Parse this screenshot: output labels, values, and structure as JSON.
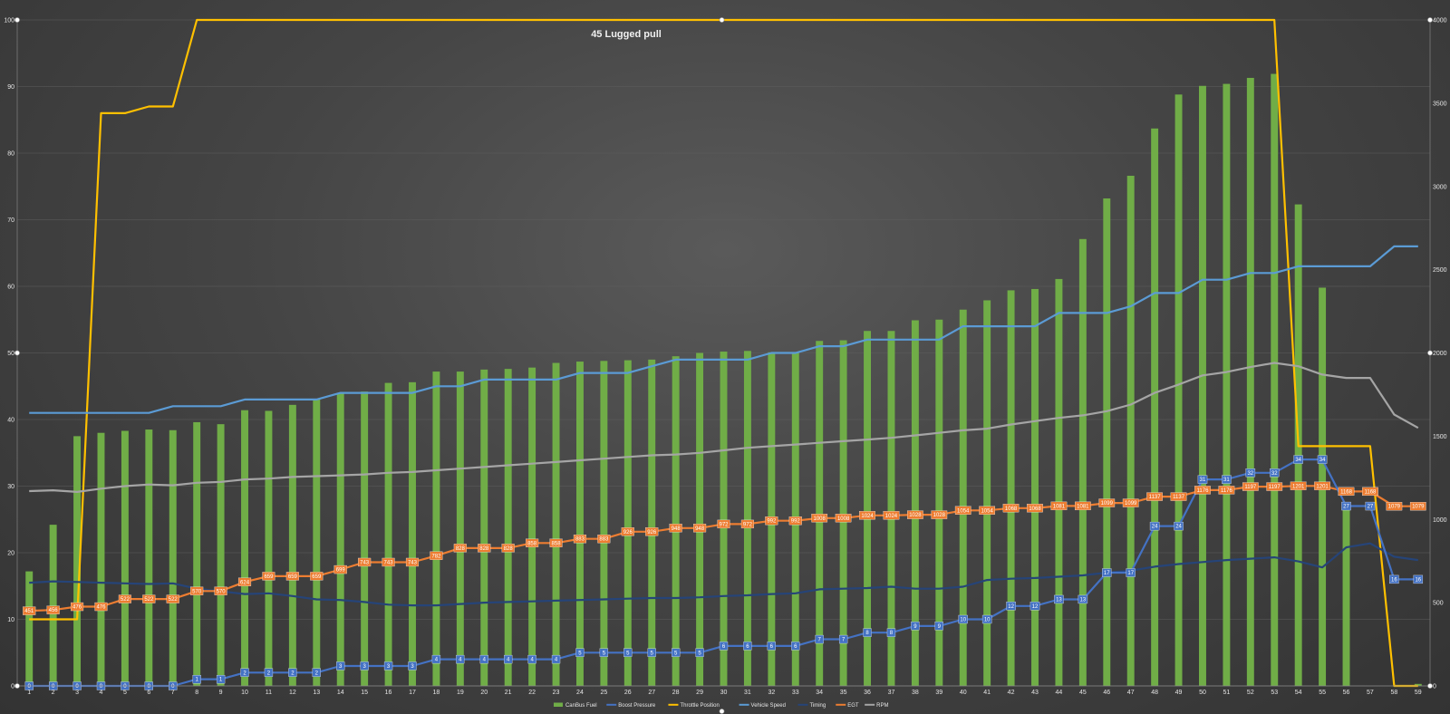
{
  "chart_data": {
    "type": "bar",
    "title": "45 Lugged pull",
    "categories": [
      "1",
      "2",
      "3",
      "4",
      "5",
      "6",
      "7",
      "8",
      "9",
      "10",
      "11",
      "12",
      "13",
      "14",
      "15",
      "16",
      "17",
      "18",
      "19",
      "20",
      "21",
      "22",
      "23",
      "24",
      "25",
      "26",
      "27",
      "28",
      "29",
      "30",
      "31",
      "32",
      "33",
      "34",
      "35",
      "36",
      "37",
      "38",
      "39",
      "40",
      "41",
      "42",
      "43",
      "44",
      "45",
      "46",
      "47",
      "48",
      "49",
      "50",
      "51",
      "52",
      "53",
      "54",
      "55",
      "56",
      "57",
      "58",
      "59"
    ],
    "y_left": {
      "min": 0,
      "max": 100,
      "ticks": [
        0,
        10,
        20,
        30,
        40,
        50,
        60,
        70,
        80,
        90,
        100
      ]
    },
    "y_right": {
      "min": 0,
      "max": 4000,
      "ticks": [
        0,
        500,
        1000,
        1500,
        2000,
        2500,
        3000,
        3500,
        4000
      ]
    },
    "series": [
      {
        "name": "CanBus Fuel",
        "type": "bar",
        "axis": "left",
        "color": "#70ad47",
        "values": [
          17.2,
          24.2,
          37.5,
          38,
          38.3,
          38.5,
          38.4,
          39.6,
          39.3,
          41.4,
          41.3,
          42.2,
          43,
          44,
          44.2,
          45.5,
          45.6,
          47.2,
          47.2,
          47.5,
          47.6,
          47.8,
          48.5,
          48.7,
          48.8,
          48.9,
          49,
          49.5,
          50,
          50.2,
          50.3,
          50.1,
          50,
          51.8,
          51.9,
          53.3,
          53.3,
          54.9,
          55,
          56.5,
          57.9,
          59.4,
          59.6,
          61.1,
          67.1,
          73.2,
          76.6,
          83.7,
          88.8,
          90.1,
          90.4,
          91.3,
          91.9,
          72.3,
          59.8,
          27.3,
          0,
          0,
          0.3
        ]
      },
      {
        "name": "Boost Pressure",
        "type": "line",
        "axis": "left",
        "color": "#4472c4",
        "labels": true,
        "values": [
          0,
          0,
          0,
          0,
          0,
          0,
          0,
          1,
          1,
          2,
          2,
          2,
          2,
          3,
          3,
          3,
          3,
          4,
          4,
          4,
          4,
          4,
          4,
          5,
          5,
          5,
          5,
          5,
          5,
          6,
          6,
          6,
          6,
          7,
          7,
          8,
          8,
          9,
          9,
          10,
          10,
          12,
          12,
          13,
          13,
          17,
          17,
          24,
          24,
          31,
          31,
          32,
          32,
          34,
          34,
          27,
          27,
          16,
          16
        ]
      },
      {
        "name": "Throttle Position",
        "type": "line",
        "axis": "left",
        "color": "#ffc000",
        "values": [
          10,
          10,
          10,
          86,
          86,
          87,
          87,
          100,
          100,
          100,
          100,
          100,
          100,
          100,
          100,
          100,
          100,
          100,
          100,
          100,
          100,
          100,
          100,
          100,
          100,
          100,
          100,
          100,
          100,
          100,
          100,
          100,
          100,
          100,
          100,
          100,
          100,
          100,
          100,
          100,
          100,
          100,
          100,
          100,
          100,
          100,
          100,
          100,
          100,
          100,
          100,
          100,
          100,
          36,
          36,
          36,
          36,
          0,
          0
        ]
      },
      {
        "name": "Vehicle Speed",
        "type": "line",
        "axis": "left",
        "color": "#5b9bd5",
        "values": [
          41,
          41,
          41,
          41,
          41,
          41,
          42,
          42,
          42,
          43,
          43,
          43,
          43,
          44,
          44,
          44,
          44,
          45,
          45,
          46,
          46,
          46,
          46,
          47,
          47,
          47,
          48,
          49,
          49,
          49,
          49,
          50,
          50,
          51,
          51,
          52,
          52,
          52,
          52,
          54,
          54,
          54,
          54,
          56,
          56,
          56,
          57,
          59,
          59,
          61,
          61,
          62,
          62,
          63,
          63,
          63,
          63,
          66,
          66
        ]
      },
      {
        "name": "Timing",
        "type": "line",
        "axis": "left",
        "color": "#264478",
        "values": [
          15.5,
          15.7,
          15.6,
          15.5,
          15.4,
          15.3,
          15.4,
          14.6,
          14.2,
          13.8,
          13.9,
          13.5,
          13,
          12.9,
          12.6,
          12.2,
          12.1,
          12.1,
          12.3,
          12.5,
          12.6,
          12.7,
          12.8,
          12.9,
          13,
          13.1,
          13.2,
          13.2,
          13.3,
          13.5,
          13.6,
          13.8,
          13.9,
          14.5,
          14.6,
          14.7,
          14.9,
          14.6,
          14.6,
          14.9,
          15.9,
          16.1,
          16.2,
          16.4,
          16.6,
          17,
          17.3,
          17.9,
          18.3,
          18.6,
          18.9,
          19.1,
          19.3,
          18.7,
          17.8,
          20.8,
          21.4,
          19.4,
          18.9
        ]
      },
      {
        "name": "EGT",
        "type": "line",
        "axis": "right",
        "color": "#ed7d31",
        "labels": true,
        "values": [
          451,
          456,
          476,
          476,
          522,
          522,
          522,
          570,
          570,
          624,
          659,
          659,
          659,
          699,
          743,
          743,
          743,
          782,
          828,
          828,
          828,
          858,
          858,
          883,
          883,
          926,
          926,
          948,
          948,
          972,
          972,
          992,
          992,
          1008,
          1008,
          1024,
          1024,
          1028,
          1028,
          1054,
          1054,
          1068,
          1068,
          1081,
          1081,
          1099,
          1099,
          1137,
          1137,
          1176,
          1176,
          1197,
          1197,
          1201,
          1201,
          1168,
          1168,
          1079,
          1079
        ]
      },
      {
        "name": "RPM",
        "type": "line",
        "axis": "right",
        "color": "#a5a5a5",
        "values": [
          1170,
          1175,
          1165,
          1185,
          1200,
          1210,
          1205,
          1220,
          1225,
          1240,
          1245,
          1255,
          1260,
          1265,
          1270,
          1280,
          1285,
          1295,
          1305,
          1315,
          1325,
          1335,
          1345,
          1355,
          1365,
          1375,
          1385,
          1390,
          1400,
          1415,
          1430,
          1440,
          1450,
          1460,
          1470,
          1480,
          1490,
          1505,
          1520,
          1535,
          1545,
          1570,
          1590,
          1610,
          1625,
          1650,
          1690,
          1760,
          1810,
          1865,
          1885,
          1915,
          1940,
          1920,
          1870,
          1850,
          1850,
          1630,
          1550
        ]
      }
    ]
  }
}
